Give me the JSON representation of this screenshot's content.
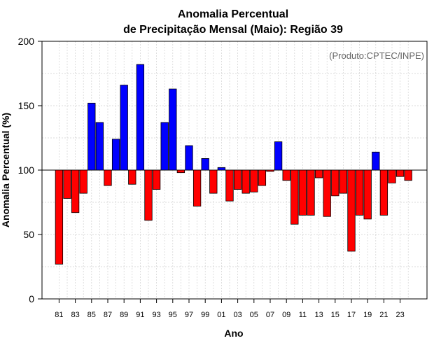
{
  "chart_data": {
    "type": "bar",
    "title": "Anomalia Percentual",
    "subtitle": "de Precipitação Mensal (Maio): Região 39",
    "xlabel": "Ano",
    "ylabel": "Anomalia Percentual (%)",
    "credit": "(Produto:CPTEC/INPE)",
    "ylim": [
      0,
      200
    ],
    "yticks": [
      0,
      50,
      100,
      150,
      200
    ],
    "baseline": 100,
    "grid": true,
    "categories": [
      "81",
      "82",
      "83",
      "84",
      "85",
      "86",
      "87",
      "88",
      "89",
      "90",
      "91",
      "92",
      "93",
      "94",
      "95",
      "96",
      "97",
      "98",
      "99",
      "00",
      "01",
      "02",
      "03",
      "04",
      "05",
      "06",
      "07",
      "08",
      "09",
      "10",
      "11",
      "12",
      "13",
      "14",
      "15",
      "16",
      "17",
      "18",
      "19",
      "20",
      "21",
      "22",
      "23",
      "24"
    ],
    "xtick_labels": [
      "81",
      "83",
      "85",
      "87",
      "89",
      "91",
      "93",
      "95",
      "97",
      "99",
      "01",
      "03",
      "05",
      "07",
      "09",
      "11",
      "13",
      "15",
      "17",
      "19",
      "21",
      "23"
    ],
    "values": [
      27,
      78,
      67,
      82,
      152,
      137,
      88,
      124,
      166,
      89,
      182,
      61,
      85,
      137,
      163,
      98,
      119,
      72,
      109,
      82,
      102,
      76,
      85,
      82,
      83,
      88,
      99,
      122,
      92,
      58,
      65,
      65,
      94,
      64,
      80,
      82,
      37,
      65,
      62,
      114,
      65,
      90,
      95,
      92
    ],
    "colors": {
      "above": "#0000ff",
      "below": "#ff0000",
      "outline": "#000000"
    }
  }
}
